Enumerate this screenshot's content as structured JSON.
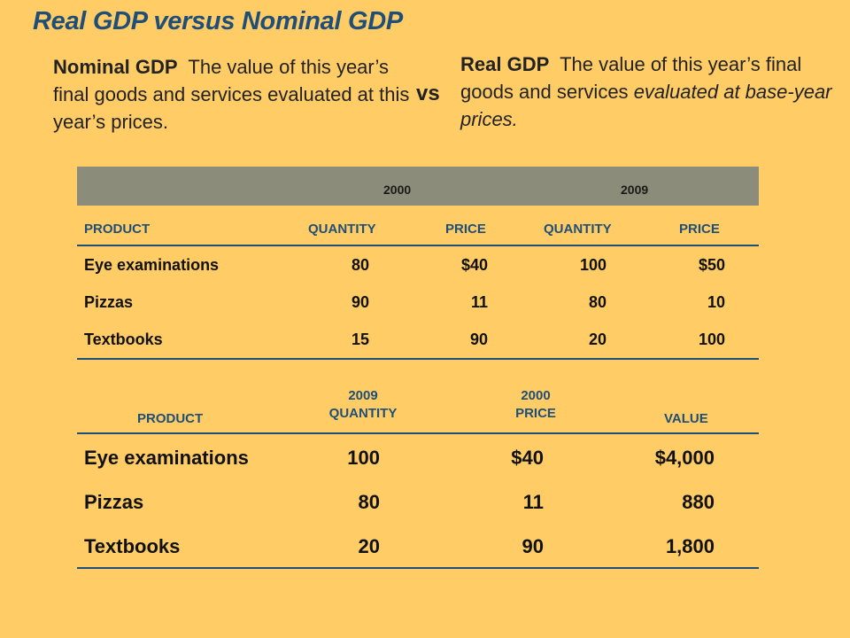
{
  "title": "Real GDP versus Nominal GDP",
  "nominal": {
    "term": "Nominal GDP",
    "definition": "The value of this year’s final goods and services evaluated at this year’s prices."
  },
  "vs": "vs",
  "real": {
    "term": "Real GDP",
    "definition_plain": "The value of this year’s final goods and services",
    "definition_italic": "evaluated at base-year prices."
  },
  "table1": {
    "year_a": "2000",
    "year_b": "2009",
    "headers": [
      "PRODUCT",
      "QUANTITY",
      "PRICE",
      "QUANTITY",
      "PRICE"
    ],
    "rows": [
      [
        "Eye examinations",
        "80",
        "$40",
        "100",
        "$50"
      ],
      [
        "Pizzas",
        "90",
        "11",
        "80",
        "10"
      ],
      [
        "Textbooks",
        "15",
        "90",
        "20",
        "100"
      ]
    ]
  },
  "table2": {
    "headers": {
      "product": "PRODUCT",
      "qty_year": "2009",
      "qty_label": "QUANTITY",
      "price_year": "2000",
      "price_label": "PRICE",
      "value": "VALUE"
    },
    "rows": [
      [
        "Eye examinations",
        "100",
        "$40",
        "$4,000"
      ],
      [
        "Pizzas",
        "80",
        "11",
        "880"
      ],
      [
        "Textbooks",
        "20",
        "90",
        "1,800"
      ]
    ]
  },
  "colors": {
    "background": "#FFCC66",
    "accent": "#1F4E79",
    "band": "#8C8C7A"
  }
}
